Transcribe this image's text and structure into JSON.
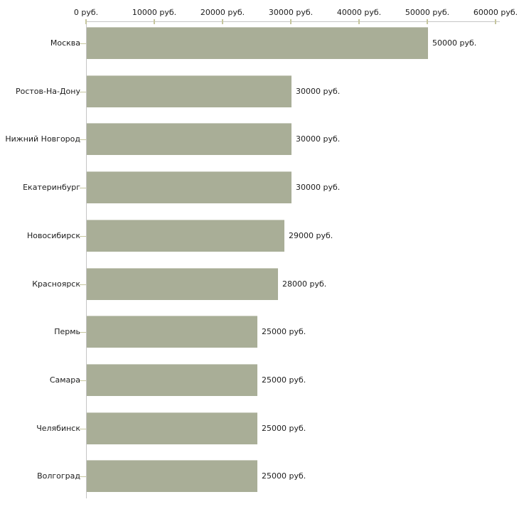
{
  "chart_data": {
    "type": "bar",
    "orientation": "horizontal",
    "unit": "руб.",
    "categories": [
      "Москва",
      "Ростов-На-Дону",
      "Нижний Новгород",
      "Екатеринбург",
      "Новосибирск",
      "Красноярск",
      "Пермь",
      "Самара",
      "Челябинск",
      "Волгоград"
    ],
    "values": [
      50000,
      30000,
      30000,
      30000,
      29000,
      28000,
      25000,
      25000,
      25000,
      25000
    ],
    "value_labels": [
      "50000 руб.",
      "30000 руб.",
      "30000 руб.",
      "30000 руб.",
      "29000 руб.",
      "28000 руб.",
      "25000 руб.",
      "25000 руб.",
      "25000 руб.",
      "25000 руб."
    ],
    "x_ticks": [
      {
        "value": 0,
        "label": "0 руб."
      },
      {
        "value": 10000,
        "label": "10000 руб."
      },
      {
        "value": 20000,
        "label": "20000 руб."
      },
      {
        "value": 30000,
        "label": "30000 руб."
      },
      {
        "value": 40000,
        "label": "40000 руб."
      },
      {
        "value": 50000,
        "label": "50000 руб."
      },
      {
        "value": 60000,
        "label": "60000 руб."
      }
    ],
    "xlim": [
      0,
      60000
    ],
    "legend": null,
    "title": "",
    "grid": false,
    "colors": {
      "bar": "#a9ae97",
      "axis_line": "#c5c5c5",
      "tick_mark": "#c6c69e",
      "text": "#1c1c1c",
      "background": "#ffffff"
    }
  }
}
